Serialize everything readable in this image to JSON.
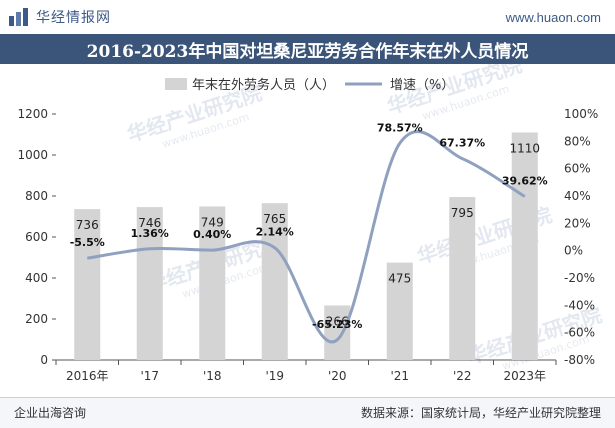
{
  "header": {
    "brand": "华经情报网",
    "url": "www.huaon.com",
    "title": "2016-2023年中国对坦桑尼亚劳务合作年末在外人员情况"
  },
  "footer": {
    "left": "企业出海咨询",
    "right": "数据来源：国家统计局，华经产业研究院整理"
  },
  "watermark": "华经产业研究院",
  "watermark_url": "www.huaon.com",
  "colors": {
    "bar": "#d4d4d4",
    "line": "#8fa1bf",
    "title_bg": "#3b5479"
  },
  "chart_data": {
    "type": "bar",
    "categories": [
      "2016年",
      "'17",
      "'18",
      "'19",
      "'20",
      "'21",
      "'22",
      "2023年"
    ],
    "series": [
      {
        "name": "年末在外劳务人员（人）",
        "type": "bar",
        "axis": "left",
        "values": [
          736,
          746,
          749,
          765,
          266,
          475,
          795,
          1110
        ],
        "labels": [
          "736",
          "746",
          "749",
          "765",
          "266",
          "475",
          "795",
          "1110"
        ]
      },
      {
        "name": "增速（%）",
        "type": "line",
        "axis": "right",
        "values": [
          -5.5,
          1.36,
          0.4,
          2.14,
          -65.23,
          78.57,
          67.37,
          39.62
        ],
        "labels": [
          "-5.5%",
          "1.36%",
          "0.40%",
          "2.14%",
          "-65.23%",
          "78.57%",
          "67.37%",
          "39.62%"
        ]
      }
    ],
    "y_left": {
      "min": 0,
      "max": 1200,
      "ticks": [
        "0",
        "200",
        "400",
        "600",
        "800",
        "1000",
        "1200"
      ]
    },
    "y_right": {
      "min": -80,
      "max": 100,
      "ticks": [
        "-80%",
        "-60%",
        "-40%",
        "-20%",
        "0%",
        "20%",
        "40%",
        "60%",
        "80%",
        "100%"
      ]
    },
    "legend_position": "top",
    "grid": false
  }
}
